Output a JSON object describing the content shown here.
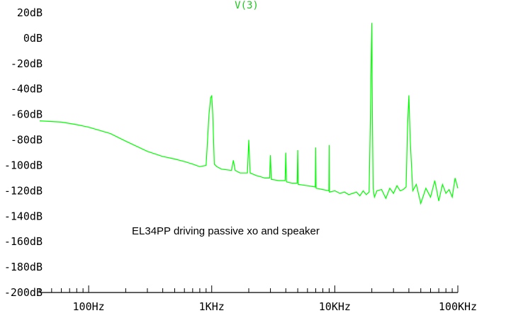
{
  "chart_data": {
    "type": "line",
    "title": "V(3)",
    "xlabel": "",
    "ylabel": "",
    "xscale": "log",
    "xlim": [
      40,
      100000
    ],
    "ylim": [
      -200,
      20
    ],
    "grid": false,
    "line_color": "#00ff00",
    "y_tick_labels": [
      "20dB",
      "0dB",
      "-20dB",
      "-40dB",
      "-60dB",
      "-80dB",
      "-100dB",
      "-120dB",
      "-140dB",
      "-160dB",
      "-180dB",
      "-200dB"
    ],
    "y_tick_values": [
      20,
      0,
      -20,
      -40,
      -60,
      -80,
      -100,
      -120,
      -140,
      -160,
      -180,
      -200
    ],
    "x_tick_labels": [
      "100Hz",
      "1KHz",
      "10KHz",
      "100KHz"
    ],
    "x_tick_values": [
      100,
      1000,
      10000,
      100000
    ],
    "annotation": "EL34PP driving passive xo and speaker",
    "series": [
      {
        "x": [
          40,
          60,
          80,
          100,
          150,
          200,
          300,
          400,
          500,
          600,
          700,
          800,
          900,
          950,
          980,
          1000,
          1020,
          1050,
          1100,
          1200,
          1450,
          1500,
          1550,
          1700,
          1950,
          2000,
          2050,
          2300,
          2500,
          2700,
          2950,
          3000,
          3050,
          3500,
          3950,
          4000,
          4050,
          4500,
          4950,
          5000,
          5050,
          6000,
          6950,
          7000,
          7050,
          8000,
          8950,
          9000,
          9050,
          10000,
          11000,
          12000,
          13000,
          14000,
          15000,
          16000,
          17000,
          18000,
          19000,
          19500,
          19800,
          20000,
          20200,
          20500,
          21000,
          22000,
          24000,
          26000,
          28000,
          30000,
          32000,
          34000,
          36000,
          38000,
          39000,
          40000,
          41000,
          43000,
          46000,
          50000,
          55000,
          60000,
          65000,
          70000,
          75000,
          80000,
          85000,
          90000,
          95000,
          100000
        ],
        "values": [
          -65,
          -66,
          -68,
          -70,
          -75,
          -81,
          -89,
          -93,
          -95,
          -97,
          -99,
          -101,
          -100,
          -60,
          -47,
          -45,
          -60,
          -99,
          -101,
          -103,
          -104,
          -96,
          -104,
          -106,
          -106,
          -80,
          -106,
          -108,
          -109,
          -110,
          -110,
          -92,
          -111,
          -112,
          -112,
          -90,
          -113,
          -114,
          -114,
          -88,
          -115,
          -116,
          -117,
          -86,
          -118,
          -119,
          -120,
          -84,
          -121,
          -120,
          -122,
          -121,
          -123,
          -122,
          -121,
          -124,
          -120,
          -123,
          -121,
          -60,
          -10,
          12,
          -60,
          -118,
          -125,
          -120,
          -119,
          -126,
          -118,
          -122,
          -116,
          -120,
          -119,
          -117,
          -70,
          -45,
          -80,
          -120,
          -115,
          -130,
          -118,
          -125,
          -112,
          -128,
          -115,
          -122,
          -119,
          -125,
          -110,
          -118
        ]
      }
    ]
  }
}
